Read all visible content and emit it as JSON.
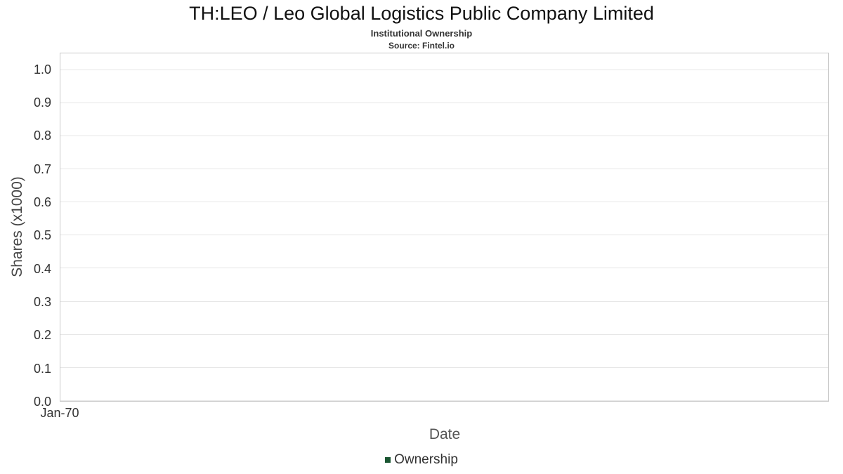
{
  "chart_data": {
    "type": "line",
    "title": "TH:LEO / Leo Global Logistics Public Company Limited",
    "subtitle": "Institutional Ownership",
    "source": "Source: Fintel.io",
    "xlabel": "Date",
    "ylabel": "Shares (x1000)",
    "ylim": [
      0,
      1.05
    ],
    "ytick_labels": [
      "0.0",
      "0.1",
      "0.2",
      "0.3",
      "0.4",
      "0.5",
      "0.6",
      "0.7",
      "0.8",
      "0.9",
      "1.0"
    ],
    "xtick_labels": [
      "Jan-70"
    ],
    "grid": true,
    "series": [
      {
        "name": "Ownership",
        "x": [],
        "values": []
      }
    ],
    "legend": {
      "position": "bottom",
      "entries": [
        {
          "label": "Ownership",
          "color": "#1a5632"
        }
      ]
    }
  }
}
